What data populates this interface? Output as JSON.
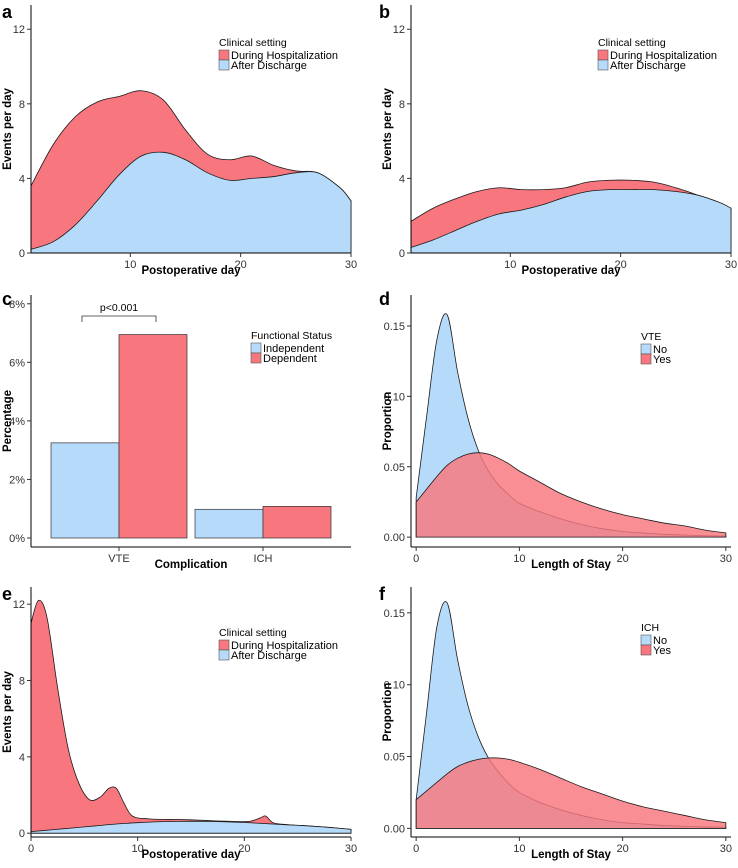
{
  "colors": {
    "red": "#F8767D",
    "blue": "#B6DAF9",
    "stroke": "#1a1a1a",
    "overlap": "#C96478"
  },
  "chart_data": [
    {
      "panel": "a",
      "type": "area",
      "stacked": true,
      "xlabel": "Postoperative day",
      "ylabel": "Events per day",
      "xlim": [
        1,
        30
      ],
      "ylim": [
        0,
        13.3
      ],
      "xticks": [
        "10",
        "20",
        "30"
      ],
      "xtick_values": [
        10,
        20,
        30
      ],
      "yticks": [
        "0",
        "4",
        "8",
        "12"
      ],
      "ytick_values": [
        0,
        4,
        8,
        12
      ],
      "legend_title": "Clinical setting",
      "legend_position": "top-right",
      "series": [
        {
          "name": "During Hospitalization",
          "color": "red",
          "x": [
            1,
            3,
            5,
            7,
            9,
            11,
            13,
            15,
            17,
            19,
            21,
            23,
            25,
            27,
            29,
            30
          ],
          "values": [
            3.6,
            5.8,
            7.3,
            8.1,
            8.4,
            8.7,
            8.2,
            6.6,
            5.3,
            5.0,
            5.2,
            4.7,
            4.4,
            4.3,
            3.5,
            2.8
          ]
        },
        {
          "name": "After Discharge",
          "color": "blue",
          "x": [
            1,
            3,
            5,
            7,
            9,
            11,
            13,
            15,
            17,
            19,
            21,
            23,
            25,
            27,
            29,
            30
          ],
          "values": [
            0.2,
            0.6,
            1.5,
            2.8,
            4.2,
            5.2,
            5.4,
            5.0,
            4.3,
            3.9,
            4.0,
            4.1,
            4.3,
            4.3,
            3.5,
            2.8
          ]
        }
      ]
    },
    {
      "panel": "b",
      "type": "area",
      "stacked": true,
      "xlabel": "Postoperative day",
      "ylabel": "Events per day",
      "xlim": [
        1,
        30
      ],
      "ylim": [
        0,
        13.3
      ],
      "xticks": [
        "10",
        "20",
        "30"
      ],
      "xtick_values": [
        10,
        20,
        30
      ],
      "yticks": [
        "0",
        "4",
        "8",
        "12"
      ],
      "ytick_values": [
        0,
        4,
        8,
        12
      ],
      "legend_title": "Clinical setting",
      "legend_position": "top-right",
      "series": [
        {
          "name": "During Hospitalization",
          "color": "red",
          "x": [
            1,
            3,
            5,
            7,
            9,
            11,
            13,
            15,
            17,
            19,
            21,
            23,
            25,
            27,
            29,
            30
          ],
          "values": [
            1.7,
            2.4,
            2.9,
            3.3,
            3.5,
            3.4,
            3.4,
            3.5,
            3.8,
            3.9,
            3.9,
            3.8,
            3.5,
            3.1,
            2.6,
            2.4
          ]
        },
        {
          "name": "After Discharge",
          "color": "blue",
          "x": [
            1,
            3,
            5,
            7,
            9,
            11,
            13,
            15,
            17,
            19,
            21,
            23,
            25,
            27,
            29,
            30
          ],
          "values": [
            0.3,
            0.7,
            1.2,
            1.7,
            2.1,
            2.3,
            2.6,
            3.0,
            3.3,
            3.4,
            3.4,
            3.4,
            3.3,
            3.1,
            2.7,
            2.4
          ]
        }
      ]
    },
    {
      "panel": "c",
      "type": "bar",
      "xlabel": "Complication",
      "ylabel": "Percentage",
      "categories": [
        "VTE",
        "ICH"
      ],
      "ylim": [
        0,
        8.3
      ],
      "yticks": [
        "0%",
        "2%",
        "4%",
        "6%",
        "8%"
      ],
      "ytick_values": [
        0,
        2,
        4,
        6,
        8
      ],
      "legend_title": "Functional Status",
      "legend_position": "top-right",
      "series": [
        {
          "name": "Independent",
          "color": "blue",
          "values": [
            3.25,
            0.98
          ]
        },
        {
          "name": "Dependent",
          "color": "red",
          "values": [
            6.95,
            1.08
          ]
        }
      ],
      "annotation": "p<0.001"
    },
    {
      "panel": "d",
      "type": "area",
      "xlabel": "Length of Stay",
      "ylabel": "Proportion",
      "xlim": [
        -0.5,
        30.5
      ],
      "ylim": [
        -0.007,
        0.172
      ],
      "xticks": [
        "0",
        "10",
        "20",
        "30"
      ],
      "xtick_values": [
        0,
        10,
        20,
        30
      ],
      "yticks": [
        "0.00",
        "0.05",
        "0.10",
        "0.15"
      ],
      "ytick_values": [
        0,
        0.05,
        0.1,
        0.15
      ],
      "legend_title": "VTE",
      "legend_position": "top-right",
      "series": [
        {
          "name": "No",
          "color": "blue",
          "x": [
            0,
            1,
            2,
            3,
            4,
            5,
            6,
            7,
            8,
            9,
            10,
            12,
            14,
            16,
            18,
            20,
            22,
            24,
            26,
            28,
            30
          ],
          "values": [
            0.028,
            0.085,
            0.14,
            0.158,
            0.118,
            0.085,
            0.062,
            0.047,
            0.037,
            0.03,
            0.024,
            0.018,
            0.013,
            0.009,
            0.006,
            0.004,
            0.003,
            0.002,
            0.0015,
            0.001,
            0.0008
          ]
        },
        {
          "name": "Yes",
          "color": "red",
          "x": [
            0,
            1,
            2,
            3,
            4,
            5,
            6,
            7,
            8,
            9,
            10,
            12,
            14,
            16,
            18,
            20,
            22,
            24,
            26,
            28,
            30
          ],
          "values": [
            0.025,
            0.034,
            0.043,
            0.051,
            0.056,
            0.059,
            0.06,
            0.059,
            0.056,
            0.052,
            0.047,
            0.039,
            0.031,
            0.025,
            0.02,
            0.016,
            0.013,
            0.01,
            0.008,
            0.005,
            0.003
          ]
        }
      ]
    },
    {
      "panel": "e",
      "type": "area",
      "stacked": true,
      "xlabel": "Postoperative day",
      "ylabel": "Events per day",
      "xlim": [
        0,
        30
      ],
      "ylim": [
        -0.2,
        12.9
      ],
      "xticks": [
        "0",
        "10",
        "20",
        "30"
      ],
      "xtick_values": [
        0,
        10,
        20,
        30
      ],
      "yticks": [
        "0",
        "4",
        "8",
        "12"
      ],
      "ytick_values": [
        0,
        4,
        8,
        12
      ],
      "legend_title": "Clinical setting",
      "legend_position": "top-right",
      "series": [
        {
          "name": "During Hospitalization",
          "color": "red",
          "x": [
            0,
            0.7,
            1.5,
            2.5,
            3.5,
            4.5,
            5.5,
            6.5,
            7.3,
            8,
            8.7,
            9.5,
            11,
            13,
            15,
            17,
            19,
            20.5,
            21.5,
            22,
            22.7,
            24,
            26,
            28,
            30
          ],
          "values": [
            11,
            12.2,
            11.3,
            7.6,
            4.4,
            2.6,
            1.75,
            1.9,
            2.35,
            2.35,
            1.6,
            0.9,
            0.75,
            0.72,
            0.7,
            0.65,
            0.62,
            0.62,
            0.8,
            0.9,
            0.55,
            0.45,
            0.38,
            0.3,
            0.2
          ]
        },
        {
          "name": "After Discharge",
          "color": "blue",
          "x": [
            0,
            2,
            4,
            6,
            8,
            10,
            12,
            14,
            16,
            18,
            20,
            22,
            24,
            26,
            28,
            30
          ],
          "values": [
            0.08,
            0.18,
            0.28,
            0.38,
            0.48,
            0.55,
            0.6,
            0.62,
            0.62,
            0.6,
            0.56,
            0.5,
            0.44,
            0.38,
            0.3,
            0.2
          ]
        }
      ]
    },
    {
      "panel": "f",
      "type": "area",
      "xlabel": "Length of Stay",
      "ylabel": "Proportion",
      "xlim": [
        -0.5,
        30.5
      ],
      "ylim": [
        -0.006,
        0.168
      ],
      "xticks": [
        "0",
        "10",
        "20",
        "30"
      ],
      "xtick_values": [
        0,
        10,
        20,
        30
      ],
      "yticks": [
        "0.00",
        "0.05",
        "0.10",
        "0.15"
      ],
      "ytick_values": [
        0,
        0.05,
        0.1,
        0.15
      ],
      "legend_title": "ICH",
      "legend_position": "top-right",
      "series": [
        {
          "name": "No",
          "color": "blue",
          "x": [
            0,
            1,
            2,
            3,
            4,
            5,
            6,
            7,
            8,
            9,
            10,
            12,
            14,
            16,
            18,
            20,
            22,
            24,
            26,
            28,
            30
          ],
          "values": [
            0.02,
            0.08,
            0.14,
            0.157,
            0.118,
            0.086,
            0.064,
            0.049,
            0.039,
            0.031,
            0.025,
            0.018,
            0.013,
            0.009,
            0.006,
            0.004,
            0.003,
            0.002,
            0.0015,
            0.001,
            0.0008
          ]
        },
        {
          "name": "Yes",
          "color": "red",
          "x": [
            0,
            1,
            2,
            3,
            4,
            5,
            6,
            7,
            8,
            9,
            10,
            12,
            14,
            16,
            18,
            20,
            22,
            24,
            26,
            28,
            30
          ],
          "values": [
            0.02,
            0.026,
            0.032,
            0.038,
            0.043,
            0.046,
            0.048,
            0.049,
            0.049,
            0.048,
            0.046,
            0.041,
            0.035,
            0.029,
            0.024,
            0.019,
            0.015,
            0.012,
            0.009,
            0.006,
            0.004
          ]
        }
      ]
    }
  ]
}
